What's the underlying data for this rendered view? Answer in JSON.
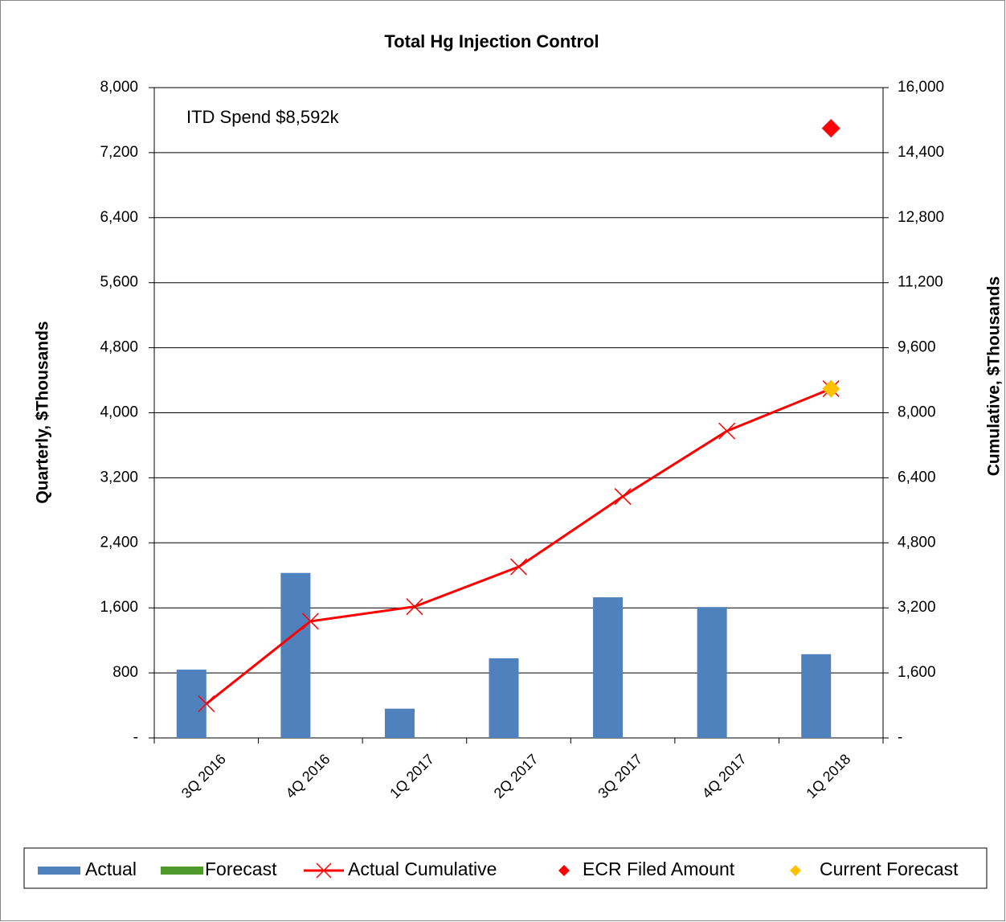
{
  "chart_data": {
    "type": "bar",
    "title": "Total Hg Injection Control",
    "annotation": "ITD Spend  $8,592k",
    "ylabel": "Quarterly, $Thousands",
    "y2label": "Cumulative, $Thousands",
    "categories": [
      "3Q 2016",
      "4Q 2016",
      "1Q 2017",
      "2Q 2017",
      "3Q 2017",
      "4Q 2017",
      "1Q 2018"
    ],
    "series": [
      {
        "name": "Actual",
        "type": "bar",
        "color": "#4f81bd",
        "values": [
          840,
          2030,
          360,
          980,
          1730,
          1610,
          1030
        ]
      },
      {
        "name": "Forecast",
        "type": "bar",
        "color": "#4e9a2a",
        "values": [
          null,
          null,
          null,
          null,
          null,
          null,
          null
        ]
      },
      {
        "name": "Actual Cumulative",
        "type": "line",
        "axis": "y2",
        "color": "#ff0000",
        "values": [
          840,
          2870,
          3230,
          4210,
          5940,
          7550,
          8592
        ]
      },
      {
        "name": "ECR Filed Amount",
        "type": "scatter",
        "axis": "y2",
        "color": "#ff0000",
        "values": [
          null,
          null,
          null,
          null,
          null,
          null,
          15000
        ]
      },
      {
        "name": "Current Forecast",
        "type": "scatter",
        "axis": "y2",
        "color": "#ffc000",
        "values": [
          null,
          null,
          null,
          null,
          null,
          null,
          8592
        ]
      }
    ],
    "ylim": [
      0,
      8000
    ],
    "yticks": [
      {
        "value": 0,
        "label": "-"
      },
      800,
      {
        "value": 1600,
        "label": "1,600"
      },
      {
        "value": 2400,
        "label": "2,400"
      },
      {
        "value": 3200,
        "label": "3,200"
      },
      {
        "value": 4000,
        "label": "4,000"
      },
      {
        "value": 4800,
        "label": "4,800"
      },
      {
        "value": 5600,
        "label": "5,600"
      },
      {
        "value": 6400,
        "label": "6,400"
      },
      {
        "value": 7200,
        "label": "7,200"
      },
      {
        "value": 8000,
        "label": "8,000"
      }
    ],
    "y2lim": [
      0,
      16000
    ],
    "y2ticks": [
      {
        "value": 0,
        "label": "-"
      },
      {
        "value": 1600,
        "label": "1,600"
      },
      {
        "value": 3200,
        "label": "3,200"
      },
      {
        "value": 4800,
        "label": "4,800"
      },
      {
        "value": 6400,
        "label": "6,400"
      },
      {
        "value": 8000,
        "label": "8,000"
      },
      {
        "value": 9600,
        "label": "9,600"
      },
      {
        "value": 11200,
        "label": "11,200"
      },
      {
        "value": 12800,
        "label": "12,800"
      },
      {
        "value": 14400,
        "label": "14,400"
      },
      {
        "value": 16000,
        "label": "16,000"
      }
    ],
    "grid": true,
    "legend": "bottom"
  }
}
